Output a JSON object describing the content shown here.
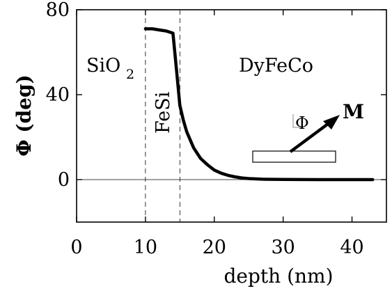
{
  "chart_data": {
    "type": "line",
    "xlabel": "depth (nm)",
    "ylabel": "Φ (deg)",
    "xlim": [
      0,
      45
    ],
    "ylim": [
      -20,
      80
    ],
    "xticks": [
      0,
      10,
      20,
      30,
      40
    ],
    "yticks": [
      0,
      40,
      80
    ],
    "x_tick_labels": [
      "0",
      "10",
      "20",
      "30",
      "40"
    ],
    "y_tick_labels": [
      "0",
      "40",
      "80"
    ],
    "grid": false,
    "series": [
      {
        "x": [
          10,
          11,
          12,
          13,
          14,
          14.5,
          15,
          15.5,
          16,
          17,
          18,
          19,
          20,
          21,
          22,
          23,
          24,
          25,
          27,
          30,
          35,
          40,
          43
        ],
        "y": [
          71,
          71,
          70.5,
          70,
          69,
          52,
          35,
          28,
          22.5,
          15,
          10,
          7,
          4.5,
          3,
          2,
          1.3,
          0.8,
          0.5,
          0.2,
          0.1,
          0,
          0,
          0
        ]
      }
    ],
    "reference_lines": {
      "horizontal_y": [
        0
      ],
      "vertical_dashed_x": [
        10,
        15
      ]
    },
    "annotations": {
      "region_sio2": "SiO",
      "region_sio2_subscript": "2",
      "region_fesi": "FeSi",
      "region_dyfeco": "DyFeCo",
      "angle_symbol": "Φ",
      "magnetization_label": "M"
    }
  }
}
